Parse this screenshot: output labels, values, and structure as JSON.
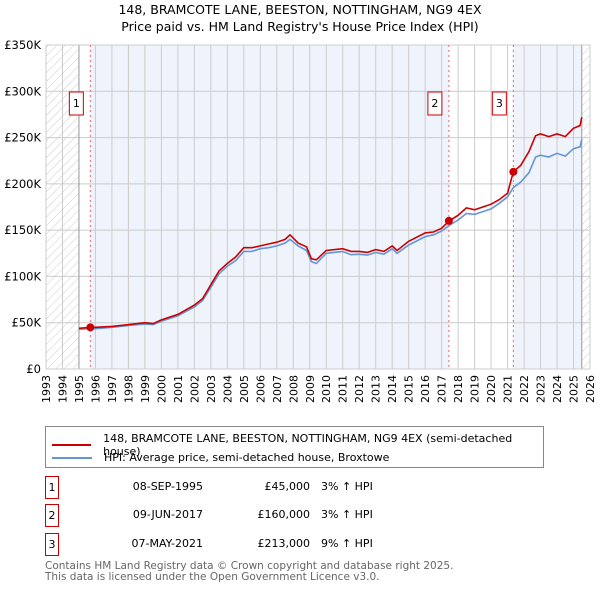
{
  "title": "148, BRAMCOTE LANE, BEESTON, NOTTINGHAM, NG9 4EX",
  "subtitle": "Price paid vs. HM Land Registry's House Price Index (HPI)",
  "colors": {
    "property": "#cc0000",
    "hpi": "#6495d8",
    "shade": "#eef3fc"
  },
  "chart_data": {
    "type": "line",
    "xlim": [
      1993,
      2026
    ],
    "ylim": [
      0,
      350000
    ],
    "yticks": [
      {
        "v": 0,
        "label": "£0"
      },
      {
        "v": 50000,
        "label": "£50K"
      },
      {
        "v": 100000,
        "label": "£100K"
      },
      {
        "v": 150000,
        "label": "£150K"
      },
      {
        "v": 200000,
        "label": "£200K"
      },
      {
        "v": 250000,
        "label": "£250K"
      },
      {
        "v": 300000,
        "label": "£300K"
      },
      {
        "v": 350000,
        "label": "£350K"
      }
    ],
    "xticks": [
      "1993",
      "1994",
      "1995",
      "1996",
      "1997",
      "1998",
      "1999",
      "2000",
      "2001",
      "2002",
      "2003",
      "2004",
      "2005",
      "2006",
      "2007",
      "2008",
      "2009",
      "2010",
      "2011",
      "2012",
      "2013",
      "2014",
      "2015",
      "2016",
      "2017",
      "2018",
      "2019",
      "2020",
      "2021",
      "2022",
      "2023",
      "2024",
      "2025",
      "2026"
    ],
    "data_start": 1995.0,
    "data_end": 2025.5,
    "series": [
      {
        "name": "148, BRAMCOTE LANE, BEESTON, NOTTINGHAM, NG9 4EX (semi-detached house)",
        "color": "#cc0000",
        "x": [
          1995.0,
          1995.7,
          1996,
          1997,
          1998,
          1999,
          1999.5,
          2000,
          2001,
          2002,
          2002.5,
          2003,
          2003.5,
          2004,
          2004.5,
          2005,
          2005.5,
          2006,
          2006.5,
          2007,
          2007.5,
          2007.8,
          2008.3,
          2008.8,
          2009.1,
          2009.4,
          2010,
          2011,
          2011.5,
          2012,
          2012.5,
          2013,
          2013.5,
          2014,
          2014.3,
          2015,
          2016,
          2016.5,
          2017,
          2017.45,
          2018,
          2018.5,
          2019,
          2019.5,
          2020,
          2020.5,
          2021,
          2021.35,
          2021.8,
          2022.3,
          2022.7,
          2023,
          2023.5,
          2024,
          2024.5,
          2025,
          2025.4,
          2025.5
        ],
        "y": [
          44000,
          45000,
          45000,
          46000,
          48000,
          50000,
          49000,
          53000,
          59000,
          69000,
          76000,
          91000,
          106000,
          114000,
          121000,
          131000,
          131000,
          133000,
          135000,
          137000,
          140000,
          145000,
          136000,
          132000,
          119000,
          118000,
          128000,
          130000,
          127000,
          127000,
          126000,
          129000,
          127000,
          133000,
          128000,
          138000,
          147000,
          148000,
          152000,
          160000,
          166000,
          174000,
          172000,
          175000,
          178000,
          183000,
          190000,
          213000,
          220000,
          235000,
          252000,
          254000,
          251000,
          254000,
          251000,
          260000,
          263000,
          272000
        ]
      },
      {
        "name": "HPI: Average price, semi-detached house, Broxtowe",
        "color": "#6495d8",
        "x": [
          1995.0,
          1995.7,
          1996,
          1997,
          1998,
          1999,
          1999.5,
          2000,
          2001,
          2002,
          2002.5,
          2003,
          2003.5,
          2004,
          2004.5,
          2005,
          2005.5,
          2006,
          2006.5,
          2007,
          2007.5,
          2007.8,
          2008.3,
          2008.8,
          2009.1,
          2009.4,
          2010,
          2011,
          2011.5,
          2012,
          2012.5,
          2013,
          2013.5,
          2014,
          2014.3,
          2015,
          2016,
          2016.5,
          2017,
          2017.45,
          2018,
          2018.5,
          2019,
          2019.5,
          2020,
          2020.5,
          2021,
          2021.35,
          2021.8,
          2022.3,
          2022.7,
          2023,
          2023.5,
          2024,
          2024.5,
          2025,
          2025.4,
          2025.5
        ],
        "y": [
          43000,
          43500,
          43500,
          45000,
          47000,
          48500,
          48000,
          51500,
          57500,
          67000,
          74000,
          88000,
          103000,
          111000,
          117000,
          127000,
          127000,
          130000,
          131000,
          133000,
          136000,
          140000,
          133000,
          128000,
          116000,
          114000,
          125000,
          127000,
          123500,
          124000,
          123000,
          126000,
          124000,
          130000,
          125000,
          134000,
          143000,
          145000,
          149000,
          155000,
          161000,
          168000,
          167000,
          170000,
          173000,
          179000,
          186000,
          196000,
          202000,
          212000,
          229000,
          231000,
          229000,
          233000,
          230000,
          238000,
          240000,
          248000
        ]
      }
    ],
    "sales": [
      {
        "id": "1",
        "x": 1995.69,
        "y": 45000,
        "date": "08-SEP-1995",
        "price": "£45,000",
        "hpi": "3% ↑ HPI"
      },
      {
        "id": "2",
        "x": 2017.44,
        "y": 160000,
        "date": "09-JUN-2017",
        "price": "£160,000",
        "hpi": "3% ↑ HPI"
      },
      {
        "id": "3",
        "x": 2021.35,
        "y": 213000,
        "date": "07-MAY-2021",
        "price": "£213,000",
        "hpi": "9% ↑ HPI"
      }
    ]
  },
  "legend": {
    "property": "148, BRAMCOTE LANE, BEESTON, NOTTINGHAM, NG9 4EX (semi-detached house)",
    "hpi": "HPI: Average price, semi-detached house, Broxtowe"
  },
  "footer": {
    "line1": "Contains HM Land Registry data © Crown copyright and database right 2025.",
    "line2": "This data is licensed under the Open Government Licence v3.0."
  }
}
